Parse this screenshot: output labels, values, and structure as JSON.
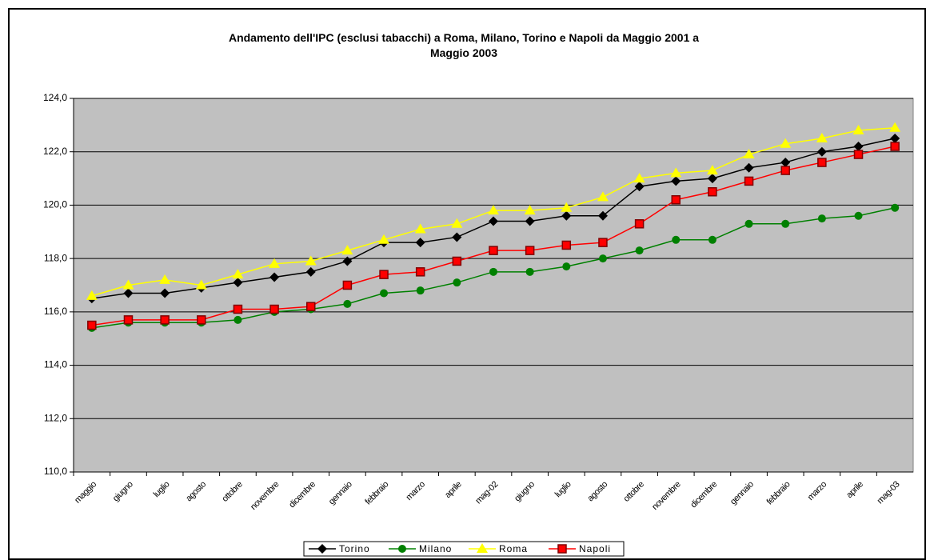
{
  "chart_data": {
    "type": "line",
    "title": "Andamento dell'IPC (esclusi tabacchi) a Roma, Milano, Torino e Napoli da  Maggio 2001 a Maggio 2003",
    "categories": [
      "maggio",
      "giugno",
      "luglio",
      "agosto",
      "ottobre",
      "novembre",
      "dicembre",
      "gennaio",
      "febbraio",
      "marzo",
      "aprile",
      "mag-02",
      "giugno",
      "luglio",
      "agosto",
      "ottobre",
      "novembre",
      "dicembre",
      "gennaio",
      "febbraio",
      "marzo",
      "aprile",
      "mag-03"
    ],
    "series": [
      {
        "name": "Torino",
        "color": "#000000",
        "marker": "diamond",
        "values": [
          116.5,
          116.7,
          116.7,
          116.9,
          117.1,
          117.3,
          117.5,
          117.9,
          118.6,
          118.6,
          118.8,
          119.4,
          119.4,
          119.6,
          119.6,
          120.7,
          120.9,
          121.0,
          121.4,
          121.6,
          122.0,
          122.2,
          122.5
        ]
      },
      {
        "name": "Milano",
        "color": "#008000",
        "marker": "circle",
        "values": [
          115.4,
          115.6,
          115.6,
          115.6,
          115.7,
          116.0,
          116.1,
          116.3,
          116.7,
          116.8,
          117.1,
          117.5,
          117.5,
          117.7,
          118.0,
          118.3,
          118.7,
          118.7,
          119.3,
          119.3,
          119.5,
          119.6,
          119.9
        ]
      },
      {
        "name": "Roma",
        "color": "#ffff00",
        "marker": "triangle",
        "values": [
          116.6,
          117.0,
          117.2,
          117.0,
          117.4,
          117.8,
          117.9,
          118.3,
          118.7,
          119.1,
          119.3,
          119.8,
          119.8,
          119.9,
          120.3,
          121.0,
          121.2,
          121.3,
          121.9,
          122.3,
          122.5,
          122.8,
          122.9
        ]
      },
      {
        "name": "Napoli",
        "color": "#ff0000",
        "marker": "square",
        "values": [
          115.5,
          115.7,
          115.7,
          115.7,
          116.1,
          116.1,
          116.2,
          117.0,
          117.4,
          117.5,
          117.9,
          118.3,
          118.3,
          118.5,
          118.6,
          119.3,
          120.2,
          120.5,
          120.9,
          121.3,
          121.6,
          121.9,
          122.2
        ]
      }
    ],
    "ylim": [
      110,
      124
    ],
    "yticks": [
      {
        "value": 110,
        "label": "110,0"
      },
      {
        "value": 112,
        "label": "112,0"
      },
      {
        "value": 114,
        "label": "114,0"
      },
      {
        "value": 116,
        "label": "116,0"
      },
      {
        "value": 118,
        "label": "118,0"
      },
      {
        "value": 120,
        "label": "120,0"
      },
      {
        "value": 122,
        "label": "122,0"
      },
      {
        "value": 124,
        "label": "124,0"
      }
    ],
    "grid": true,
    "plot_background": "#c0c0c0",
    "legend": "bottom"
  }
}
